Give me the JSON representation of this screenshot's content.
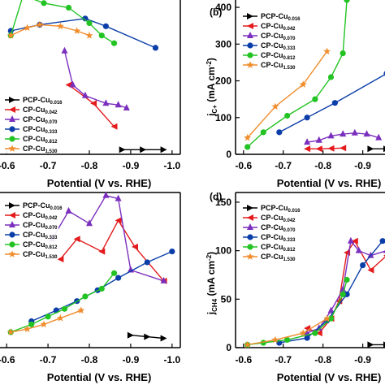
{
  "chart_data": [
    {
      "type": "line",
      "panel": "a",
      "label": "",
      "xlabel": "Potential (V vs. RHE)",
      "ylabel": "",
      "xlim": [
        -0.58,
        -1.02
      ],
      "ylim": [
        0,
        100
      ],
      "xticks": [
        "-0.6",
        "-0.7",
        "-0.8",
        "-0.9",
        "-1.0"
      ],
      "yticks": [],
      "legend_position": "bottom-left",
      "series": [
        {
          "name": "PCP-Cu",
          "sub": "0.016",
          "color": "#000000",
          "marker": "tri-right",
          "x": [
            -0.88,
            -0.93,
            -0.98
          ],
          "y": [
            3,
            3,
            3
          ]
        },
        {
          "name": "CP-Cu",
          "sub": "0.042",
          "color": "#e41a1c",
          "marker": "tri-left",
          "x": [
            -0.75,
            -0.81,
            -0.86
          ],
          "y": [
            45,
            33,
            18
          ]
        },
        {
          "name": "CP-Cu",
          "sub": "0.070",
          "color": "#7b2fbe",
          "marker": "tri-up",
          "x": [
            -0.74,
            -0.76,
            -0.79,
            -0.84,
            -0.87,
            -0.89
          ],
          "y": [
            67,
            45,
            38,
            33,
            32,
            30
          ]
        },
        {
          "name": "CP-Cu",
          "sub": "0.333",
          "color": "#0b3ea8",
          "marker": "circle",
          "x": [
            -0.61,
            -0.68,
            -0.79,
            -0.84,
            -0.96
          ],
          "y": [
            80,
            84,
            88,
            83,
            69
          ]
        },
        {
          "name": "CP-Cu",
          "sub": "0.812",
          "color": "#22c322",
          "marker": "circle",
          "x": [
            -0.61,
            -0.64,
            -0.69,
            -0.75,
            -0.8,
            -0.83,
            -0.86
          ],
          "y": [
            77,
            103,
            98,
            95,
            85,
            77,
            72
          ]
        },
        {
          "name": "CP-Cu",
          "sub": "1.530",
          "color": "#f08c2b",
          "marker": "star",
          "x": [
            -0.61,
            -0.65,
            -0.68,
            -0.73,
            -0.77,
            -0.8
          ],
          "y": [
            77,
            82,
            84,
            83,
            80,
            77
          ]
        }
      ]
    },
    {
      "type": "line",
      "panel": "b",
      "label": "(b)",
      "xlabel": "Potential (V vs. RHE)",
      "ylabel_main": "j",
      "ylabel_sub": "C",
      "ylabel_sub2": "+",
      "ylabel_unit": "(mA cm",
      "ylabel_exp": "-2",
      "ylabel_close": ")",
      "xlim": [
        -0.58,
        -0.96
      ],
      "ylim": [
        0,
        420
      ],
      "xticks": [
        "-0.6",
        "-0.7",
        "-0.8",
        "-0.9"
      ],
      "yticks": [
        "0",
        "100",
        "200",
        "300",
        "400"
      ],
      "legend_position": "top-left",
      "series": [
        {
          "name": "PCP-Cu",
          "sub": "0.016",
          "color": "#000000",
          "marker": "tri-right",
          "x": [
            -0.92,
            -0.96
          ],
          "y": [
            15,
            15
          ]
        },
        {
          "name": "CP-Cu",
          "sub": "0.042",
          "color": "#e41a1c",
          "marker": "tri-left",
          "x": [
            -0.76,
            -0.79,
            -0.82,
            -0.85
          ],
          "y": [
            15,
            15,
            16,
            17
          ]
        },
        {
          "name": "CP-Cu",
          "sub": "0.070",
          "color": "#7b2fbe",
          "marker": "tri-up",
          "x": [
            -0.76,
            -0.79,
            -0.82,
            -0.85,
            -0.88,
            -0.91,
            -0.94
          ],
          "y": [
            33,
            38,
            50,
            55,
            58,
            55,
            45
          ]
        },
        {
          "name": "CP-Cu",
          "sub": "0.333",
          "color": "#0b3ea8",
          "marker": "circle",
          "x": [
            -0.69,
            -0.76,
            -0.83,
            -0.96
          ],
          "y": [
            60,
            100,
            140,
            220
          ]
        },
        {
          "name": "CP-Cu",
          "sub": "0.812",
          "color": "#22c322",
          "marker": "circle",
          "x": [
            -0.61,
            -0.65,
            -0.71,
            -0.78,
            -0.82,
            -0.85,
            -0.86
          ],
          "y": [
            20,
            60,
            105,
            150,
            210,
            275,
            420
          ]
        },
        {
          "name": "CP-Cu",
          "sub": "1.530",
          "color": "#f08c2b",
          "marker": "star",
          "x": [
            -0.61,
            -0.68,
            -0.75,
            -0.81
          ],
          "y": [
            45,
            130,
            190,
            280
          ]
        }
      ]
    },
    {
      "type": "line",
      "panel": "c",
      "label": "",
      "xlabel": "Potential (V vs. RHE)",
      "ylabel": "",
      "xlim": [
        -0.58,
        -1.02
      ],
      "ylim": [
        0,
        100
      ],
      "xticks": [
        "-0.6",
        "-0.7",
        "-0.8",
        "-0.9",
        "-1.0"
      ],
      "yticks": [],
      "legend_position": "top-left",
      "series": [
        {
          "name": "PCP-Cu",
          "sub": "0.016",
          "color": "#000000",
          "marker": "tri-right",
          "x": [
            -0.9,
            -0.94,
            -0.98
          ],
          "y": [
            8,
            7,
            6
          ]
        },
        {
          "name": "CP-Cu",
          "sub": "0.042",
          "color": "#e41a1c",
          "marker": "tri-left",
          "x": [
            -0.73,
            -0.77,
            -0.83,
            -0.87,
            -0.91,
            -0.98
          ],
          "y": [
            57,
            70,
            62,
            82,
            65,
            43
          ]
        },
        {
          "name": "CP-Cu",
          "sub": "0.070",
          "color": "#7b2fbe",
          "marker": "tri-up",
          "x": [
            -0.71,
            -0.75,
            -0.8,
            -0.84,
            -0.87,
            -0.9,
            -0.98
          ],
          "y": [
            70,
            88,
            80,
            98,
            96,
            50,
            43
          ]
        },
        {
          "name": "CP-Cu",
          "sub": "0.333",
          "color": "#0b3ea8",
          "marker": "circle",
          "x": [
            -0.66,
            -0.72,
            -0.77,
            -0.82,
            -0.87,
            -0.94,
            -1.0
          ],
          "y": [
            17,
            24,
            30,
            37,
            45,
            55,
            62
          ]
        },
        {
          "name": "CP-Cu",
          "sub": "0.812",
          "color": "#22c322",
          "marker": "circle",
          "x": [
            -0.61,
            -0.66,
            -0.7,
            -0.74,
            -0.79,
            -0.83,
            -0.86
          ],
          "y": [
            10,
            15,
            20,
            25,
            33,
            38,
            48
          ]
        },
        {
          "name": "CP-Cu",
          "sub": "1.530",
          "color": "#f08c2b",
          "marker": "star",
          "x": [
            -0.61,
            -0.65,
            -0.69,
            -0.73,
            -0.78
          ],
          "y": [
            10,
            12,
            15,
            19,
            24
          ]
        }
      ]
    },
    {
      "type": "line",
      "panel": "d",
      "label": "(d)",
      "xlabel": "Potential (V vs. RHE)",
      "ylabel_main": "j",
      "ylabel_sub": "CH",
      "ylabel_sub2": "4",
      "ylabel_unit": "(mA cm",
      "ylabel_exp": "-2",
      "ylabel_close": ")",
      "xlim": [
        -0.58,
        -0.96
      ],
      "ylim": [
        0,
        160
      ],
      "xticks": [
        "-0.6",
        "-0.7",
        "-0.8",
        "-0.9"
      ],
      "yticks": [
        "0",
        "50",
        "100",
        "150"
      ],
      "legend_position": "top-left",
      "series": [
        {
          "name": "PCP-Cu",
          "sub": "0.016",
          "color": "#000000",
          "marker": "tri-right",
          "x": [
            -0.92,
            -0.96
          ],
          "y": [
            3,
            3
          ]
        },
        {
          "name": "CP-Cu",
          "sub": "0.042",
          "color": "#e41a1c",
          "marker": "tri-left",
          "x": [
            -0.76,
            -0.79,
            -0.82,
            -0.84,
            -0.86,
            -0.88,
            -0.92,
            -0.96
          ],
          "y": [
            20,
            15,
            30,
            48,
            98,
            110,
            80,
            95
          ]
        },
        {
          "name": "CP-Cu",
          "sub": "0.070",
          "color": "#7b2fbe",
          "marker": "tri-up",
          "x": [
            -0.76,
            -0.79,
            -0.82,
            -0.85,
            -0.87,
            -0.89,
            -0.92,
            -0.96
          ],
          "y": [
            15,
            20,
            38,
            60,
            110,
            100,
            95,
            100
          ]
        },
        {
          "name": "CP-Cu",
          "sub": "0.333",
          "color": "#0b3ea8",
          "marker": "circle",
          "x": [
            -0.69,
            -0.76,
            -0.81,
            -0.86,
            -0.9,
            -0.95
          ],
          "y": [
            5,
            10,
            28,
            55,
            85,
            110
          ]
        },
        {
          "name": "CP-Cu",
          "sub": "0.812",
          "color": "#22c322",
          "marker": "circle",
          "x": [
            -0.61,
            -0.65,
            -0.71,
            -0.78,
            -0.82,
            -0.85,
            -0.86
          ],
          "y": [
            3,
            5,
            8,
            15,
            30,
            55,
            70
          ]
        },
        {
          "name": "CP-Cu",
          "sub": "1.530",
          "color": "#f08c2b",
          "marker": "star",
          "x": [
            -0.61,
            -0.68,
            -0.75,
            -0.81
          ],
          "y": [
            3,
            8,
            15,
            30
          ]
        }
      ]
    }
  ]
}
